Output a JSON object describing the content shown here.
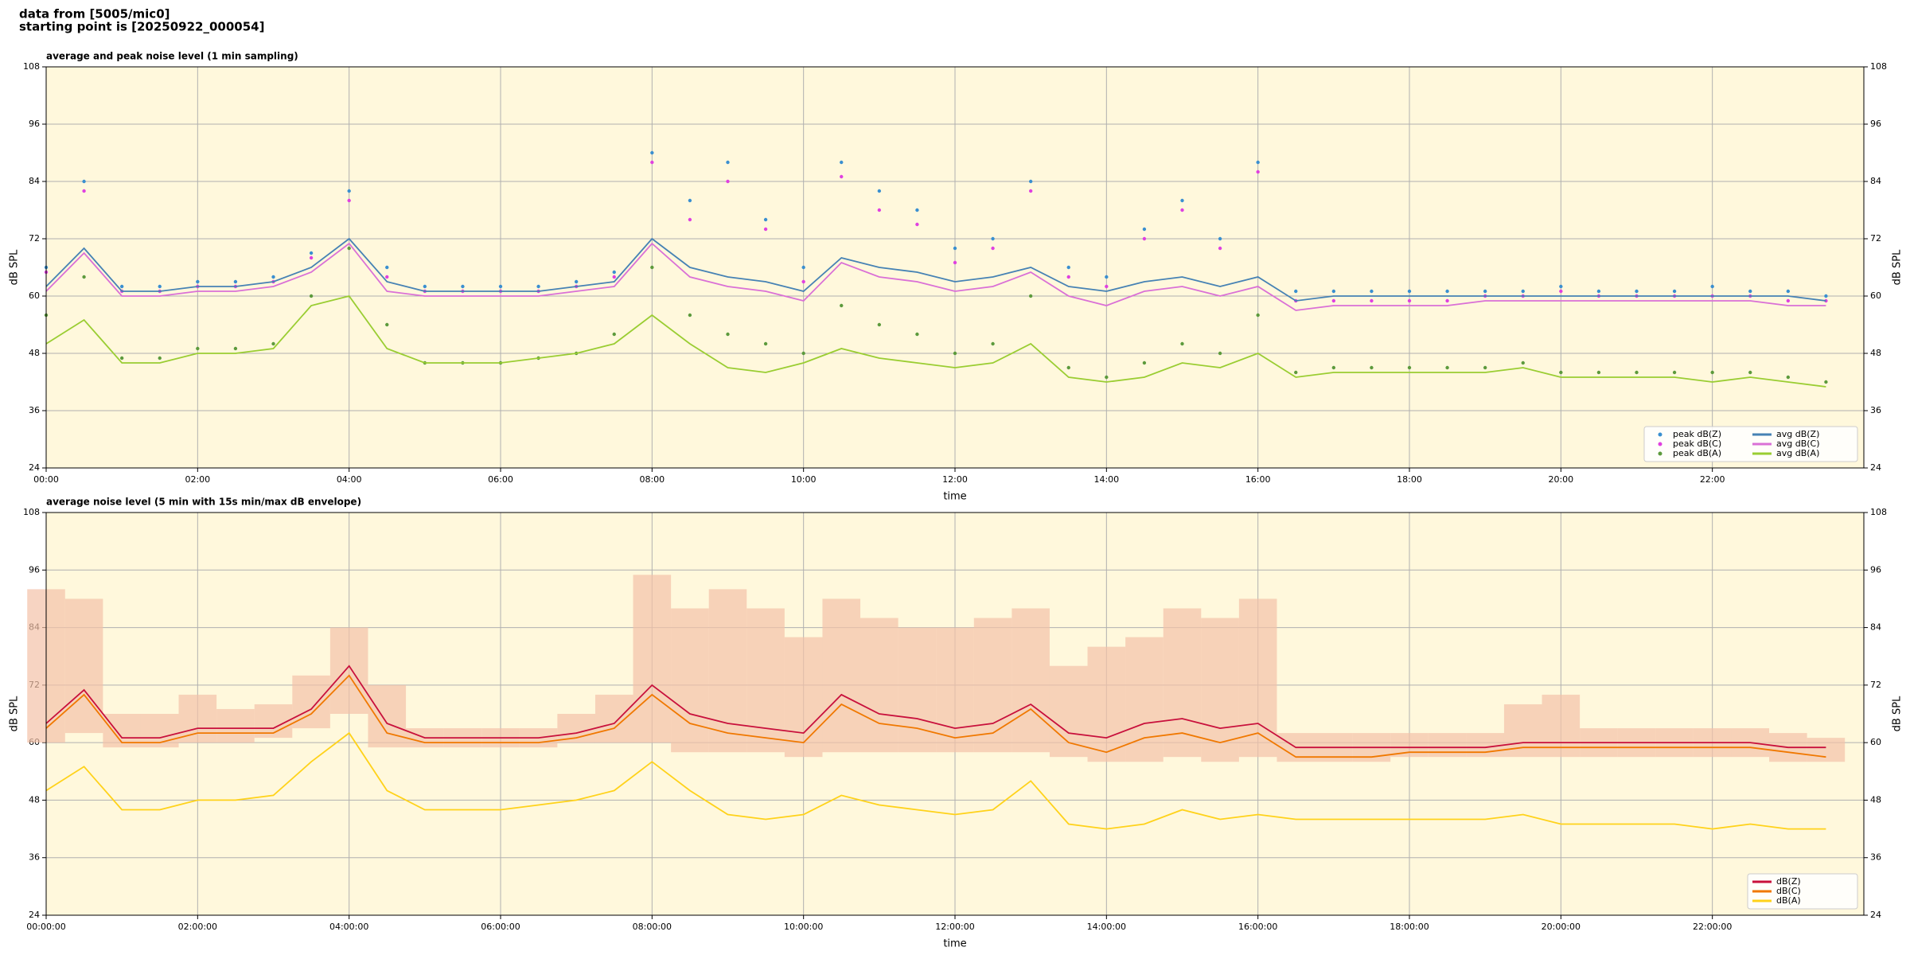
{
  "header": {
    "lines": [
      "data from [5005/mic0]",
      "starting point is [20250922_000054]"
    ]
  },
  "chart_data": [
    {
      "type": "line",
      "title": "average and peak noise level (1 min sampling)",
      "xlabel": "time",
      "ylabel": "dB SPL",
      "x": [
        0,
        0.5,
        1,
        1.5,
        2,
        2.5,
        3,
        3.5,
        4,
        4.5,
        5,
        5.5,
        6,
        6.5,
        7,
        7.5,
        8,
        8.5,
        9,
        9.5,
        10,
        10.5,
        11,
        11.5,
        12,
        12.5,
        13,
        13.5,
        14,
        14.5,
        15,
        15.5,
        16,
        16.5,
        17,
        17.5,
        18,
        18.5,
        19,
        19.5,
        20,
        20.5,
        21,
        21.5,
        22,
        22.5,
        23,
        23.5
      ],
      "series": [
        {
          "name": "peak dB(Z)",
          "type": "scatter",
          "color": "#3a8fd0",
          "values": [
            66,
            84,
            62,
            62,
            63,
            63,
            64,
            69,
            82,
            66,
            62,
            62,
            62,
            62,
            63,
            65,
            90,
            80,
            88,
            76,
            66,
            88,
            82,
            78,
            70,
            72,
            84,
            66,
            64,
            74,
            80,
            72,
            88,
            61,
            61,
            61,
            61,
            61,
            61,
            61,
            62,
            61,
            61,
            61,
            62,
            61,
            61,
            60
          ]
        },
        {
          "name": "peak dB(C)",
          "type": "scatter",
          "color": "#e040e0",
          "values": [
            65,
            82,
            61,
            61,
            62,
            62,
            63,
            68,
            80,
            64,
            61,
            61,
            61,
            61,
            62,
            64,
            88,
            76,
            84,
            74,
            63,
            85,
            78,
            75,
            67,
            70,
            82,
            64,
            62,
            72,
            78,
            70,
            86,
            59,
            59,
            59,
            59,
            59,
            60,
            60,
            61,
            60,
            60,
            60,
            60,
            60,
            59,
            59
          ]
        },
        {
          "name": "peak dB(A)",
          "type": "scatter",
          "color": "#5c9a3c",
          "values": [
            56,
            64,
            47,
            47,
            49,
            49,
            50,
            60,
            70,
            54,
            46,
            46,
            46,
            47,
            48,
            52,
            66,
            56,
            52,
            50,
            48,
            58,
            54,
            52,
            48,
            50,
            60,
            45,
            43,
            46,
            50,
            48,
            56,
            44,
            45,
            45,
            45,
            45,
            45,
            46,
            44,
            44,
            44,
            44,
            44,
            44,
            43,
            42
          ]
        },
        {
          "name": "avg dB(Z)",
          "type": "line",
          "color": "#4682b4",
          "values": [
            62,
            70,
            61,
            61,
            62,
            62,
            63,
            66,
            72,
            63,
            61,
            61,
            61,
            61,
            62,
            63,
            72,
            66,
            64,
            63,
            61,
            68,
            66,
            65,
            63,
            64,
            66,
            62,
            61,
            63,
            64,
            62,
            64,
            59,
            60,
            60,
            60,
            60,
            60,
            60,
            60,
            60,
            60,
            60,
            60,
            60,
            60,
            59
          ]
        },
        {
          "name": "avg dB(C)",
          "type": "line",
          "color": "#da70d6",
          "values": [
            61,
            69,
            60,
            60,
            61,
            61,
            62,
            65,
            71,
            61,
            60,
            60,
            60,
            60,
            61,
            62,
            71,
            64,
            62,
            61,
            59,
            67,
            64,
            63,
            61,
            62,
            65,
            60,
            58,
            61,
            62,
            60,
            62,
            57,
            58,
            58,
            58,
            58,
            59,
            59,
            59,
            59,
            59,
            59,
            59,
            59,
            58,
            58
          ]
        },
        {
          "name": "avg dB(A)",
          "type": "line",
          "color": "#9acd32",
          "values": [
            50,
            55,
            46,
            46,
            48,
            48,
            49,
            58,
            60,
            49,
            46,
            46,
            46,
            47,
            48,
            50,
            56,
            50,
            45,
            44,
            46,
            49,
            47,
            46,
            45,
            46,
            50,
            43,
            42,
            43,
            46,
            45,
            48,
            43,
            44,
            44,
            44,
            44,
            44,
            45,
            43,
            43,
            43,
            43,
            42,
            43,
            42,
            41
          ]
        }
      ],
      "xlim": [
        0,
        24
      ],
      "xticks": [
        {
          "value": 0,
          "label": "00:00"
        },
        {
          "value": 2,
          "label": "02:00"
        },
        {
          "value": 4,
          "label": "04:00"
        },
        {
          "value": 6,
          "label": "06:00"
        },
        {
          "value": 8,
          "label": "08:00"
        },
        {
          "value": 10,
          "label": "10:00"
        },
        {
          "value": 12,
          "label": "12:00"
        },
        {
          "value": 14,
          "label": "14:00"
        },
        {
          "value": 16,
          "label": "16:00"
        },
        {
          "value": 18,
          "label": "18:00"
        },
        {
          "value": 20,
          "label": "20:00"
        },
        {
          "value": 22,
          "label": "22:00"
        }
      ],
      "ylim": [
        24,
        108
      ],
      "yticks": [
        24,
        36,
        48,
        60,
        72,
        84,
        96,
        108
      ],
      "grid": true,
      "legend": "lower right",
      "legend_columns": 2,
      "background": "#fff8dc"
    },
    {
      "type": "line",
      "title": "average noise level (5 min with 15s min/max dB envelope)",
      "xlabel": "time",
      "ylabel": "dB SPL",
      "x": [
        0,
        0.5,
        1,
        1.5,
        2,
        2.5,
        3,
        3.5,
        4,
        4.5,
        5,
        5.5,
        6,
        6.5,
        7,
        7.5,
        8,
        8.5,
        9,
        9.5,
        10,
        10.5,
        11,
        11.5,
        12,
        12.5,
        13,
        13.5,
        14,
        14.5,
        15,
        15.5,
        16,
        16.5,
        17,
        17.5,
        18,
        18.5,
        19,
        19.5,
        20,
        20.5,
        21,
        21.5,
        22,
        22.5,
        23,
        23.5
      ],
      "envelope": {
        "color": "#f4c2a8",
        "lower": [
          60,
          62,
          59,
          59,
          60,
          60,
          61,
          63,
          66,
          59,
          59,
          59,
          59,
          59,
          60,
          60,
          60,
          58,
          58,
          58,
          57,
          58,
          58,
          58,
          58,
          58,
          58,
          57,
          56,
          56,
          57,
          56,
          57,
          56,
          56,
          56,
          57,
          57,
          57,
          57,
          57,
          57,
          57,
          57,
          57,
          57,
          56,
          56
        ],
        "upper": [
          92,
          90,
          66,
          66,
          70,
          67,
          68,
          74,
          84,
          72,
          63,
          63,
          63,
          63,
          66,
          70,
          95,
          88,
          92,
          88,
          82,
          90,
          86,
          84,
          84,
          86,
          88,
          76,
          80,
          82,
          88,
          86,
          90,
          62,
          62,
          62,
          62,
          62,
          62,
          68,
          70,
          63,
          63,
          63,
          63,
          63,
          62,
          61
        ]
      },
      "series": [
        {
          "name": "dB(Z)",
          "type": "line",
          "color": "#c8103c",
          "values": [
            64,
            71,
            61,
            61,
            63,
            63,
            63,
            67,
            76,
            64,
            61,
            61,
            61,
            61,
            62,
            64,
            72,
            66,
            64,
            63,
            62,
            70,
            66,
            65,
            63,
            64,
            68,
            62,
            61,
            64,
            65,
            63,
            64,
            59,
            59,
            59,
            59,
            59,
            59,
            60,
            60,
            60,
            60,
            60,
            60,
            60,
            59,
            59
          ]
        },
        {
          "name": "dB(C)",
          "type": "line",
          "color": "#f07800",
          "values": [
            63,
            70,
            60,
            60,
            62,
            62,
            62,
            66,
            74,
            62,
            60,
            60,
            60,
            60,
            61,
            63,
            70,
            64,
            62,
            61,
            60,
            68,
            64,
            63,
            61,
            62,
            67,
            60,
            58,
            61,
            62,
            60,
            62,
            57,
            57,
            57,
            58,
            58,
            58,
            59,
            59,
            59,
            59,
            59,
            59,
            59,
            58,
            57
          ]
        },
        {
          "name": "dB(A)",
          "type": "line",
          "color": "#ffd21a",
          "values": [
            50,
            55,
            46,
            46,
            48,
            48,
            49,
            56,
            62,
            50,
            46,
            46,
            46,
            47,
            48,
            50,
            56,
            50,
            45,
            44,
            45,
            49,
            47,
            46,
            45,
            46,
            52,
            43,
            42,
            43,
            46,
            44,
            45,
            44,
            44,
            44,
            44,
            44,
            44,
            45,
            43,
            43,
            43,
            43,
            42,
            43,
            42,
            42
          ]
        }
      ],
      "xlim": [
        0,
        24
      ],
      "xticks": [
        {
          "value": 0,
          "label": "00:00:00"
        },
        {
          "value": 2,
          "label": "02:00:00"
        },
        {
          "value": 4,
          "label": "04:00:00"
        },
        {
          "value": 6,
          "label": "06:00:00"
        },
        {
          "value": 8,
          "label": "08:00:00"
        },
        {
          "value": 10,
          "label": "10:00:00"
        },
        {
          "value": 12,
          "label": "12:00:00"
        },
        {
          "value": 14,
          "label": "14:00:00"
        },
        {
          "value": 16,
          "label": "16:00:00"
        },
        {
          "value": 18,
          "label": "18:00:00"
        },
        {
          "value": 20,
          "label": "20:00:00"
        },
        {
          "value": 22,
          "label": "22:00:00"
        }
      ],
      "ylim": [
        24,
        108
      ],
      "yticks": [
        24,
        36,
        48,
        60,
        72,
        84,
        96,
        108
      ],
      "grid": true,
      "legend": "lower right",
      "legend_columns": 1,
      "background": "#fff8dc"
    }
  ]
}
